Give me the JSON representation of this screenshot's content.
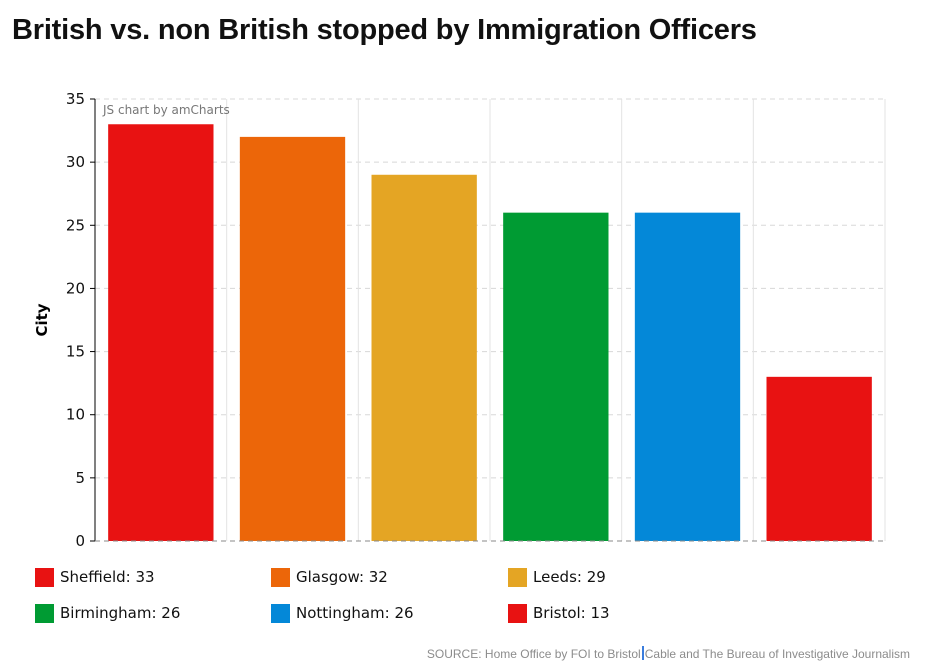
{
  "title": "British vs. non British stopped by Immigration Officers",
  "credit": "JS chart by amCharts",
  "source": {
    "before_caret": "SOURCE: Home Office by FOI to Bristol",
    "after_caret": "Cable and The Bureau of Investigative Journalism"
  },
  "chart_data": {
    "type": "bar",
    "title": "British vs. non British stopped by Immigration Officers",
    "xlabel": "",
    "ylabel": "City",
    "ylim": [
      0,
      35
    ],
    "yticks": [
      0,
      5,
      10,
      15,
      20,
      25,
      30,
      35
    ],
    "grid": true,
    "legend_position": "bottom",
    "categories": [
      "Sheffield",
      "Glasgow",
      "Leeds",
      "Birmingham",
      "Nottingham",
      "Bristol"
    ],
    "values": [
      33,
      32,
      29,
      26,
      26,
      13
    ],
    "colors": [
      "#e81212",
      "#ec6609",
      "#e4a524",
      "#009b33",
      "#0488d8",
      "#e81212"
    ]
  }
}
